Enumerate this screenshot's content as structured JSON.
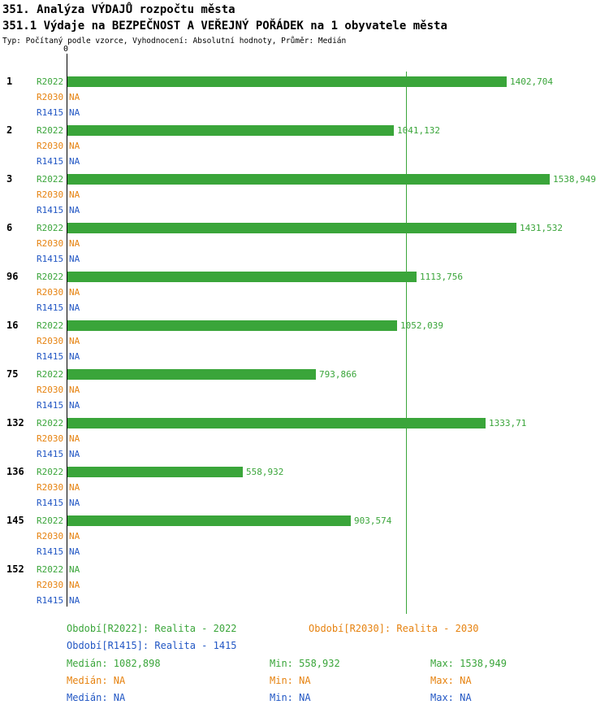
{
  "page": {
    "title": "351. Analýza VÝDAJŮ rozpočtu města",
    "subtitle": "351.1 Výdaje na BEZPEČNOST A VEŘEJNÝ POŘÁDEK na 1 obyvatele města",
    "meta": "Typ: Počítaný podle vzorce, Vyhodnocení: Absolutní hodnoty, Průměr: Medián"
  },
  "chart_data": {
    "type": "bar",
    "orientation": "horizontal",
    "title": "Výdaje na bezpečnost a veřejný pořádek na 1 obyvatele města",
    "axis_origin_label": "0",
    "xlim": [
      0,
      1700
    ],
    "grid": false,
    "series": [
      "R2022",
      "R2030",
      "R1415"
    ],
    "colors": {
      "R2022": "#3aa53a",
      "R2030": "#e6820f",
      "R1415": "#2257c4"
    },
    "median_value": 1082.898,
    "median_line": "vertical green line at x = 1082,898",
    "groups": [
      {
        "label": "1",
        "values": [
          1402.704,
          null,
          null
        ],
        "value_texts": [
          "1402,704",
          "NA",
          "NA"
        ]
      },
      {
        "label": "2",
        "values": [
          1041.132,
          null,
          null
        ],
        "value_texts": [
          "1041,132",
          "NA",
          "NA"
        ]
      },
      {
        "label": "3",
        "values": [
          1538.949,
          null,
          null
        ],
        "value_texts": [
          "1538,949",
          "NA",
          "NA"
        ]
      },
      {
        "label": "6",
        "values": [
          1431.532,
          null,
          null
        ],
        "value_texts": [
          "1431,532",
          "NA",
          "NA"
        ]
      },
      {
        "label": "96",
        "values": [
          1113.756,
          null,
          null
        ],
        "value_texts": [
          "1113,756",
          "NA",
          "NA"
        ]
      },
      {
        "label": "16",
        "values": [
          1052.039,
          null,
          null
        ],
        "value_texts": [
          "1052,039",
          "NA",
          "NA"
        ]
      },
      {
        "label": "75",
        "values": [
          793.866,
          null,
          null
        ],
        "value_texts": [
          "793,866",
          "NA",
          "NA"
        ]
      },
      {
        "label": "132",
        "values": [
          1333.71,
          null,
          null
        ],
        "value_texts": [
          "1333,71",
          "NA",
          "NA"
        ]
      },
      {
        "label": "136",
        "values": [
          558.932,
          null,
          null
        ],
        "value_texts": [
          "558,932",
          "NA",
          "NA"
        ]
      },
      {
        "label": "145",
        "values": [
          903.574,
          null,
          null
        ],
        "value_texts": [
          "903,574",
          "NA",
          "NA"
        ]
      },
      {
        "label": "152",
        "values": [
          null,
          null,
          null
        ],
        "value_texts": [
          "NA",
          "NA",
          "NA"
        ]
      }
    ]
  },
  "legend": {
    "r2022": "Období[R2022]: Realita - 2022",
    "r2030": "Období[R2030]: Realita - 2030",
    "r1415": "Období[R1415]: Realita - 1415"
  },
  "stats": {
    "r2022": {
      "median": "Medián: 1082,898",
      "min": "Min: 558,932",
      "max": "Max: 1538,949"
    },
    "r2030": {
      "median": "Medián: NA",
      "min": "Min: NA",
      "max": "Max: NA"
    },
    "r1415": {
      "median": "Medián: NA",
      "min": "Min: NA",
      "max": "Max: NA"
    }
  }
}
